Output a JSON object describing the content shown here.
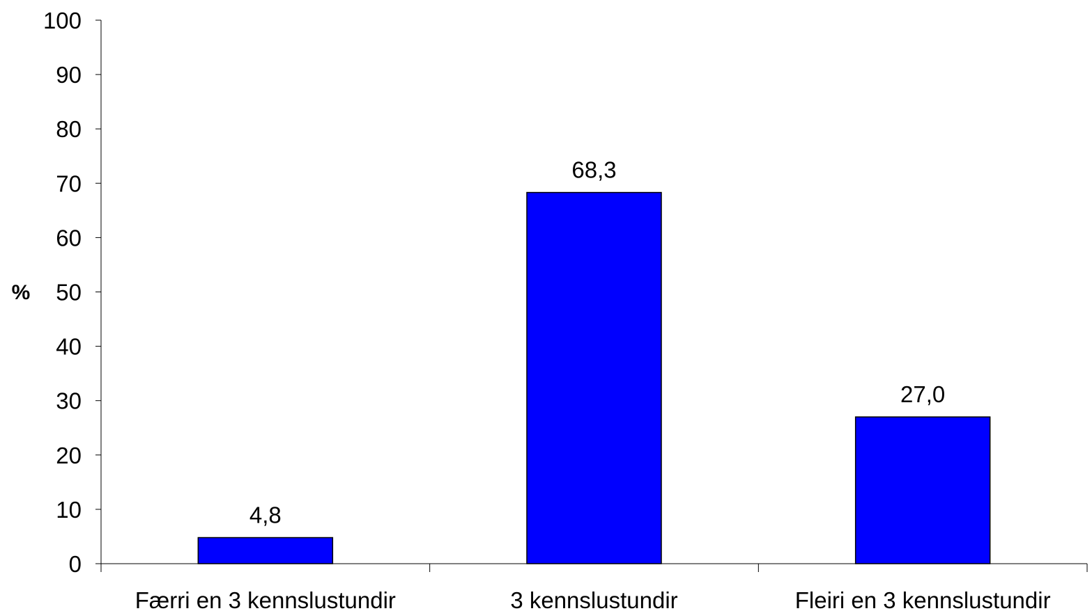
{
  "chart_data": {
    "type": "bar",
    "categories": [
      "Færri en 3 kennslustundir",
      "3 kennslustundir",
      "Fleiri en 3 kennslustundir"
    ],
    "values": [
      4.8,
      68.3,
      27.0
    ],
    "data_labels": [
      "4,8",
      "68,3",
      "27,0"
    ],
    "title": "",
    "xlabel": "",
    "ylabel": "%",
    "ylim": [
      0,
      100
    ],
    "yticks": [
      "0",
      "10",
      "20",
      "30",
      "40",
      "50",
      "60",
      "70",
      "80",
      "90",
      "100"
    ],
    "bar_color": "#0000FF",
    "bar_edge_color": "#000000",
    "grid": false,
    "legend": "none"
  }
}
